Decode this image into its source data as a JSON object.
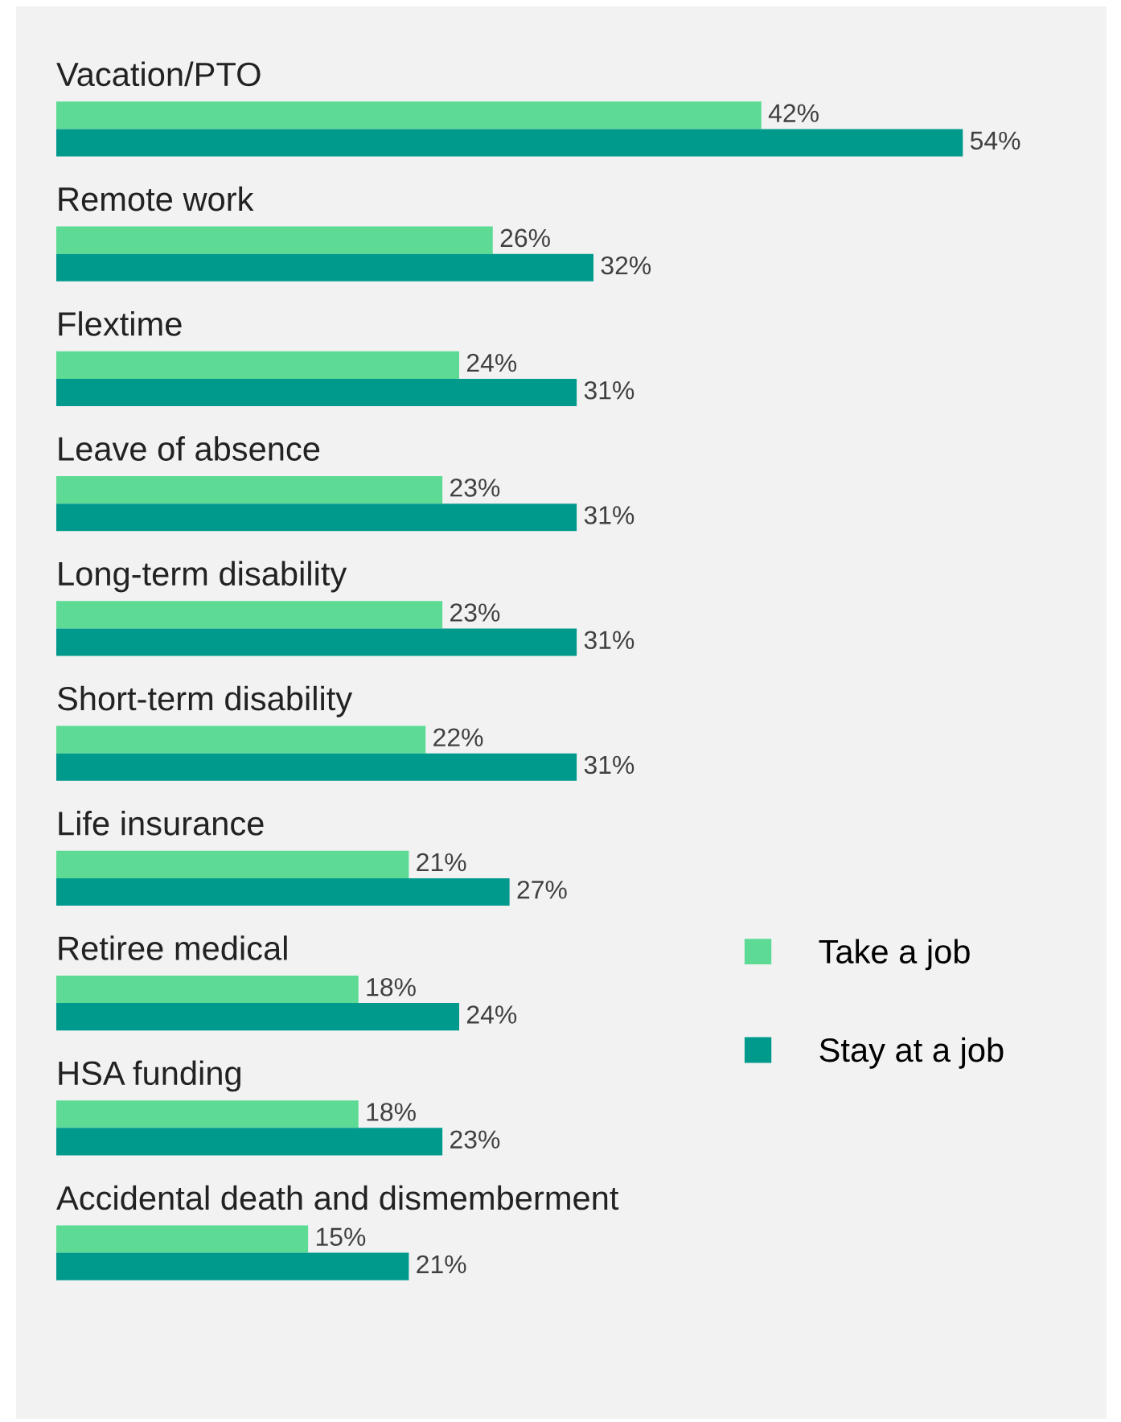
{
  "chart_data": {
    "type": "bar",
    "orientation": "horizontal",
    "categories": [
      "Vacation/PTO",
      "Remote work",
      "Flextime",
      "Leave of absence",
      "Long-term disability",
      "Short-term disability",
      "Life insurance",
      "Retiree medical",
      "HSA funding",
      "Accidental death and dismemberment"
    ],
    "series": [
      {
        "name": "Take a job",
        "color": "#5ddb95",
        "values": [
          42,
          26,
          24,
          23,
          23,
          22,
          21,
          18,
          18,
          15
        ],
        "value_labels": [
          "42%",
          "26%",
          "24%",
          "23%",
          "23%",
          "22%",
          "21%",
          "18%",
          "18%",
          "15%"
        ]
      },
      {
        "name": "Stay at a job",
        "color": "#009a8c",
        "values": [
          54,
          32,
          31,
          31,
          31,
          31,
          27,
          24,
          23,
          21
        ],
        "value_labels": [
          "54%",
          "32%",
          "31%",
          "31%",
          "31%",
          "31%",
          "27%",
          "24%",
          "23%",
          "21%"
        ]
      }
    ],
    "legend": "right"
  }
}
